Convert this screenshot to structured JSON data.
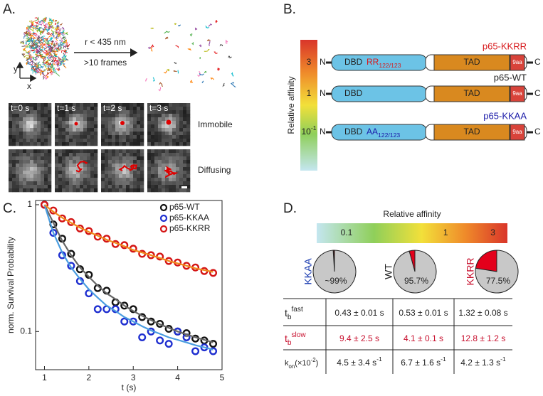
{
  "panel_a": {
    "label": "A.",
    "arrow_top": "r < 435 nm",
    "arrow_bottom": ">10 frames",
    "axis_y": "y",
    "axis_x": "x",
    "times": [
      "t=0 s",
      "t=1 s",
      "t=2 s",
      "t=3 s"
    ],
    "rows": [
      "Immobile",
      "Diffusing"
    ]
  },
  "panel_b": {
    "label": "B.",
    "scale_title": "Relative affinity",
    "scale_ticks": [
      [
        {
          "text": "3"
        }
      ],
      [
        {
          "text": "1"
        }
      ],
      [
        {
          "text": "10"
        },
        {
          "text": "-1",
          "shift": "super"
        }
      ]
    ],
    "n_term": "N",
    "c_term": "C",
    "dbd": "DBD",
    "tad": "TAD",
    "motif": "9aa",
    "constructs": [
      {
        "name": "p65-KKRR",
        "color": "#d7191c",
        "mutation": [
          {
            "text": "RR"
          },
          {
            "text": "122/123",
            "shift": "sub"
          }
        ]
      },
      {
        "name": "p65-WT",
        "color": "#222222"
      },
      {
        "name": "p65-KKAA",
        "color": "#1a1aa8",
        "mutation": [
          {
            "text": "AA"
          },
          {
            "text": "122/123",
            "shift": "sub"
          }
        ]
      }
    ]
  },
  "chart_data": [
    {
      "type": "scatter",
      "label": "C.",
      "xlabel": "t (s)",
      "ylabel": "norm. Survival Probability",
      "xlim": [
        0.8,
        5
      ],
      "ylim": [
        0.05,
        1.08
      ],
      "xticks": [
        1,
        2,
        3,
        4,
        5
      ],
      "yticks": [
        0.1,
        1
      ],
      "yscale": "log",
      "legend": "upper right",
      "x": [
        1.0,
        1.2,
        1.4,
        1.6,
        1.8,
        2.0,
        2.2,
        2.4,
        2.6,
        2.8,
        3.0,
        3.2,
        3.4,
        3.6,
        3.8,
        4.0,
        4.2,
        4.4,
        4.6,
        4.8
      ],
      "series": [
        {
          "name": "p65-WT",
          "color": "#111111",
          "fit_color": "#666666",
          "values": [
            1.0,
            0.7,
            0.54,
            0.41,
            0.31,
            0.28,
            0.22,
            0.21,
            0.17,
            0.16,
            0.15,
            0.13,
            0.12,
            0.115,
            0.105,
            0.1,
            0.097,
            0.088,
            0.085,
            0.08
          ],
          "fit": [
            1.0,
            0.72,
            0.52,
            0.4,
            0.32,
            0.27,
            0.23,
            0.2,
            0.18,
            0.16,
            0.145,
            0.133,
            0.123,
            0.114,
            0.107,
            0.1,
            0.095,
            0.09,
            0.086,
            0.082
          ]
        },
        {
          "name": "p65-KKAA",
          "color": "#1f2fd0",
          "fit_color": "#4a9de0",
          "values": [
            1.0,
            0.6,
            0.4,
            0.33,
            0.25,
            0.2,
            0.15,
            0.15,
            0.15,
            0.12,
            0.12,
            0.09,
            0.1,
            0.085,
            0.08,
            0.1,
            0.09,
            0.07,
            0.075,
            0.07
          ],
          "fit": [
            1.0,
            0.6,
            0.42,
            0.32,
            0.26,
            0.215,
            0.185,
            0.16,
            0.145,
            0.13,
            0.12,
            0.11,
            0.102,
            0.096,
            0.09,
            0.086,
            0.082,
            0.078,
            0.075,
            0.072
          ]
        },
        {
          "name": "p65-KKRR",
          "color": "#d41414",
          "fit_color": "#f08a1c",
          "values": [
            1.0,
            0.9,
            0.78,
            0.73,
            0.65,
            0.62,
            0.56,
            0.54,
            0.49,
            0.48,
            0.45,
            0.41,
            0.4,
            0.39,
            0.36,
            0.35,
            0.33,
            0.32,
            0.3,
            0.29
          ],
          "fit": [
            1.0,
            0.88,
            0.79,
            0.72,
            0.66,
            0.61,
            0.57,
            0.53,
            0.5,
            0.47,
            0.44,
            0.42,
            0.4,
            0.38,
            0.36,
            0.345,
            0.33,
            0.315,
            0.305,
            0.295
          ]
        }
      ]
    },
    {
      "type": "pie",
      "pies": [
        {
          "name": "KKAA",
          "name_color": "#1a3bb0",
          "values": [
            99,
            1
          ],
          "label": "~99%",
          "colors": [
            "#c8c8c8",
            "#5a0c0c"
          ]
        },
        {
          "name": "WT",
          "name_color": "#222222",
          "values": [
            95.7,
            4.3
          ],
          "label": "95.7%",
          "colors": [
            "#c8c8c8",
            "#e3001b"
          ]
        },
        {
          "name": "KKRR",
          "name_color": "#c8102e",
          "values": [
            77.5,
            22.5
          ],
          "label": "77.5%",
          "colors": [
            "#c8c8c8",
            "#e3001b"
          ]
        }
      ]
    }
  ],
  "panel_d": {
    "label": "D.",
    "scale_title": "Relative affinity",
    "scale_ticks": [
      0.1,
      1,
      3
    ],
    "table": {
      "rows": [
        {
          "color": "#222222",
          "head": [
            {
              "text": "t"
            },
            {
              "text": "b",
              "shift": "sub"
            },
            {
              "text": "fast",
              "shift": "super"
            }
          ],
          "cells": [
            [
              {
                "text": "0.43 ± 0.01 s"
              }
            ],
            [
              {
                "text": "0.53 ± 0.01 s"
              }
            ],
            [
              {
                "text": "1.32 ± 0.08 s"
              }
            ]
          ]
        },
        {
          "color": "#c8102e",
          "head": [
            {
              "text": "t"
            },
            {
              "text": "b",
              "shift": "sub"
            },
            {
              "text": "slow",
              "shift": "super"
            }
          ],
          "cells": [
            [
              {
                "text": "9.4 ± 2.5 s"
              }
            ],
            [
              {
                "text": "4.1 ± 0.1 s"
              }
            ],
            [
              {
                "text": "12.8 ± 1.2 s"
              }
            ]
          ]
        },
        {
          "color": "#222222",
          "head": [
            {
              "text": "k"
            },
            {
              "text": "on",
              "shift": "sub"
            },
            {
              "text": "(×10"
            },
            {
              "text": "-2",
              "shift": "super"
            },
            {
              "text": ")"
            }
          ],
          "cells": [
            [
              {
                "text": "4.5 ± 3.4 s"
              },
              {
                "text": "-1",
                "shift": "super"
              }
            ],
            [
              {
                "text": "6.7 ± 1.6 s"
              },
              {
                "text": "-1",
                "shift": "super"
              }
            ],
            [
              {
                "text": "4.2 ± 1.3 s"
              },
              {
                "text": "-1",
                "shift": "super"
              }
            ]
          ]
        }
      ]
    }
  }
}
